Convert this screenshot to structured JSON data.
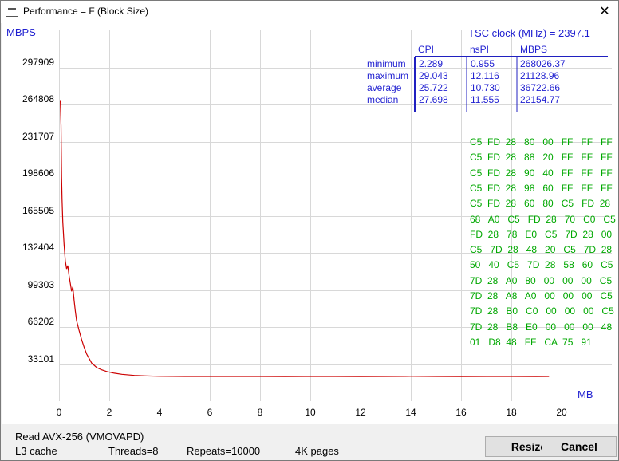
{
  "window": {
    "title": "Performance = F (Block Size)",
    "close_glyph": "✕",
    "app_icon": "window-app-icon"
  },
  "chart_data": {
    "type": "line",
    "ylabel": "MBPS",
    "xlabel": "MB",
    "yticks": [
      "297909",
      "264808",
      "231707",
      "198606",
      "165505",
      "132404",
      "99303",
      "66202",
      "33101"
    ],
    "xticks": [
      "0",
      "2",
      "4",
      "6",
      "8",
      "10",
      "12",
      "14",
      "16",
      "18",
      "20"
    ],
    "xlim": [
      0,
      22
    ],
    "ylim": [
      0,
      331010
    ],
    "grid": true,
    "series_color": "#cc0000",
    "series": [
      {
        "x": [
          0.05,
          0.08,
          0.1,
          0.12,
          0.15,
          0.2,
          0.25,
          0.3,
          0.35,
          0.4,
          0.45,
          0.5,
          0.55,
          0.6,
          0.65,
          0.7,
          0.8,
          0.9,
          1.0,
          1.1,
          1.2,
          1.3,
          1.4,
          1.5,
          1.7,
          1.9,
          2.2,
          2.5,
          3.0,
          3.5,
          4.0,
          5.0,
          6.0,
          7.0,
          8.0,
          9.0,
          10.0,
          11.0,
          12.0,
          13.0,
          14.0,
          15.0,
          16.0,
          17.0,
          18.0,
          19.0,
          19.5
        ],
        "y": [
          268026,
          246000,
          200000,
          180000,
          160000,
          140000,
          125000,
          118000,
          121000,
          112000,
          105000,
          98000,
          102000,
          90000,
          80000,
          72000,
          63000,
          55000,
          48000,
          42000,
          38000,
          34000,
          32000,
          30000,
          28000,
          26500,
          25000,
          24000,
          23000,
          22500,
          22200,
          22100,
          22100,
          22100,
          22100,
          22000,
          22100,
          22100,
          22000,
          22100,
          22200,
          22100,
          22000,
          22100,
          22100,
          22000,
          22100
        ]
      }
    ]
  },
  "stats": {
    "tsc_label": "TSC clock (MHz)  = 2397.1",
    "col_headers": [
      "CPI",
      "nsPI",
      "MBPS"
    ],
    "rows": [
      {
        "name": "minimum",
        "cpi": "2.289",
        "nspi": "0.955",
        "mbps": "268026.37"
      },
      {
        "name": "maximum",
        "cpi": "29.043",
        "nspi": "12.116",
        "mbps": "21128.96"
      },
      {
        "name": "average",
        "cpi": "25.722",
        "nspi": "10.730",
        "mbps": "36722.66"
      },
      {
        "name": "median",
        "cpi": "27.698",
        "nspi": "11.555",
        "mbps": "22154.77"
      }
    ]
  },
  "hexdump": [
    "C5  FD  28   80   00   FF   FF   FF",
    "C5  FD  28   88   20   FF   FF   FF",
    "C5  FD  28   90   40   FF   FF   FF",
    "C5  FD  28   98   60   FF   FF   FF",
    "C5  FD  28   60   80   C5   FD  28",
    "68   A0   C5   FD  28   70   C0   C5",
    "FD  28   78   E0   C5   7D  28   00",
    "C5   7D  28   48   20   C5   7D  28",
    "50   40   C5   7D  28   58   60   C5",
    "7D  28   A0   80   00   00   00   C5",
    "7D  28   A8   A0   00   00   00   C5",
    "7D  28   B0   C0   00   00   00   C5",
    "7D  28   B8   E0   00   00   00   48",
    "01   D8  48   FF   CA  75   91"
  ],
  "status": {
    "operation": "Read AVX-256 (VMOVAPD)",
    "cache": "L3 cache",
    "threads": "Threads=8",
    "repeats": "Repeats=10000",
    "pages": "4K pages"
  },
  "buttons": {
    "resize": "Resize",
    "cancel": "Cancel"
  }
}
